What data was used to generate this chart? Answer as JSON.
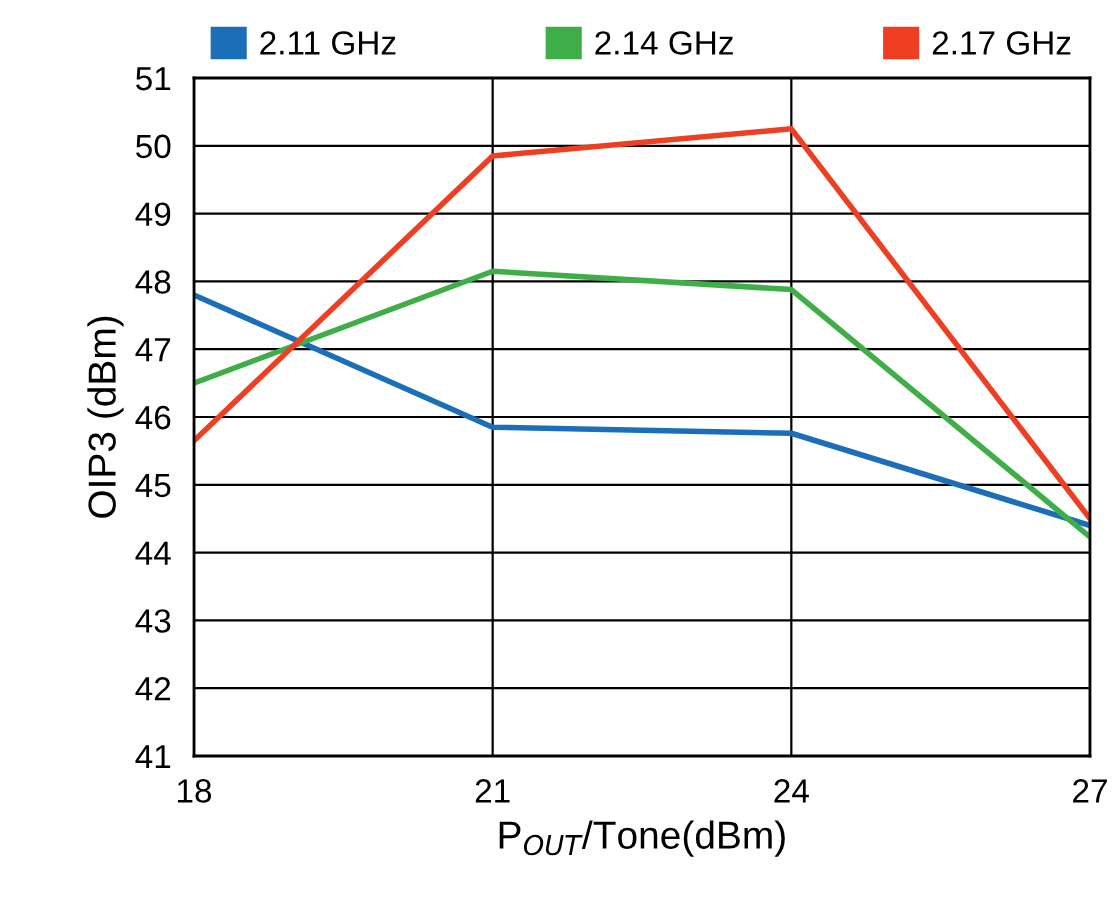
{
  "chart_data": {
    "type": "line",
    "xlabel": "P$_{OUT}$/Tone(dBm)",
    "ylabel": "OIP3 (dBm)",
    "x": [
      18,
      21,
      24,
      27
    ],
    "series": [
      {
        "name": "2.11 GHz",
        "color": "#1b6fb8",
        "values": [
          47.8,
          45.85,
          45.76,
          44.4
        ]
      },
      {
        "name": "2.14 GHz",
        "color": "#3fae49",
        "values": [
          46.5,
          48.15,
          47.88,
          44.23
        ]
      },
      {
        "name": "2.17 GHz",
        "color": "#ee3f23",
        "values": [
          45.65,
          49.85,
          50.25,
          44.5
        ]
      }
    ],
    "xlim": [
      18,
      27
    ],
    "xticks": [
      18,
      21,
      24,
      27
    ],
    "ylim": [
      41,
      51
    ],
    "yticks": [
      41,
      42,
      43,
      44,
      45,
      46,
      47,
      48,
      49,
      50,
      51
    ],
    "grid": true,
    "legend": "top",
    "marker": "none",
    "line_style": "solid"
  }
}
